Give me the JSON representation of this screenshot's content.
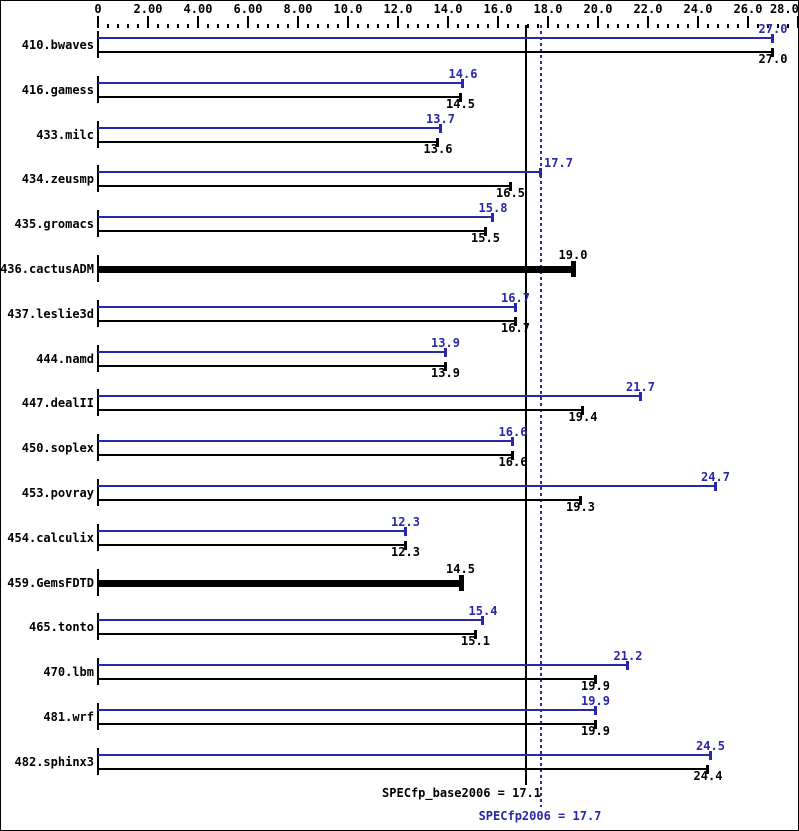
{
  "chart_data": {
    "type": "bar",
    "orientation": "horizontal",
    "title": "",
    "xlabel": "",
    "ylabel": "",
    "grid": false,
    "x_axis": {
      "min": 0,
      "max": 28,
      "major_tick_step": 2,
      "minor_tick_step": 0.4,
      "tick_labels": [
        "0",
        "2.00",
        "4.00",
        "6.00",
        "8.00",
        "10.0",
        "12.0",
        "14.0",
        "16.0",
        "18.0",
        "20.0",
        "22.0",
        "24.0",
        "26.0",
        "28.0"
      ]
    },
    "series": [
      {
        "id": "peak",
        "metric": "SPECfp2006",
        "color": "#2828aa"
      },
      {
        "id": "base",
        "metric": "SPECfp_base2006",
        "color": "#000000"
      }
    ],
    "benchmarks": [
      {
        "name": "410.bwaves",
        "style": "pair",
        "peak": 27.0,
        "peak_label": "27.0",
        "base": 27.0,
        "base_label": "27.0"
      },
      {
        "name": "416.gamess",
        "style": "pair",
        "peak": 14.6,
        "peak_label": "14.6",
        "base": 14.5,
        "base_label": "14.5"
      },
      {
        "name": "433.milc",
        "style": "pair",
        "peak": 13.7,
        "peak_label": "13.7",
        "base": 13.6,
        "base_label": "13.6"
      },
      {
        "name": "434.zeusmp",
        "style": "pair",
        "peak": 17.7,
        "peak_label": "17.7",
        "base": 16.5,
        "base_label": "16.5"
      },
      {
        "name": "435.gromacs",
        "style": "pair",
        "peak": 15.8,
        "peak_label": "15.8",
        "base": 15.5,
        "base_label": "15.5"
      },
      {
        "name": "436.cactusADM",
        "style": "single",
        "base": 19.0,
        "base_label": "19.0"
      },
      {
        "name": "437.leslie3d",
        "style": "pair",
        "peak": 16.7,
        "peak_label": "16.7",
        "base": 16.7,
        "base_label": "16.7"
      },
      {
        "name": "444.namd",
        "style": "pair",
        "peak": 13.9,
        "peak_label": "13.9",
        "base": 13.9,
        "base_label": "13.9"
      },
      {
        "name": "447.dealII",
        "style": "pair",
        "peak": 21.7,
        "peak_label": "21.7",
        "base": 19.4,
        "base_label": "19.4"
      },
      {
        "name": "450.soplex",
        "style": "pair",
        "peak": 16.6,
        "peak_label": "16.6",
        "base": 16.6,
        "base_label": "16.6"
      },
      {
        "name": "453.povray",
        "style": "pair",
        "peak": 24.7,
        "peak_label": "24.7",
        "base": 19.3,
        "base_label": "19.3"
      },
      {
        "name": "454.calculix",
        "style": "pair",
        "peak": 12.3,
        "peak_label": "12.3",
        "base": 12.3,
        "base_label": "12.3"
      },
      {
        "name": "459.GemsFDTD",
        "style": "single",
        "base": 14.5,
        "base_label": "14.5"
      },
      {
        "name": "465.tonto",
        "style": "pair",
        "peak": 15.4,
        "peak_label": "15.4",
        "base": 15.1,
        "base_label": "15.1"
      },
      {
        "name": "470.lbm",
        "style": "pair",
        "peak": 21.2,
        "peak_label": "21.2",
        "base": 19.9,
        "base_label": "19.9"
      },
      {
        "name": "481.wrf",
        "style": "pair",
        "peak": 19.9,
        "peak_label": "19.9",
        "base": 19.9,
        "base_label": "19.9"
      },
      {
        "name": "482.sphinx3",
        "style": "pair",
        "peak": 24.5,
        "peak_label": "24.5",
        "base": 24.4,
        "base_label": "24.4"
      }
    ],
    "reference_lines": [
      {
        "name": "SPECfp_base2006",
        "label": "SPECfp_base2006 = 17.1",
        "value": 17.1,
        "style": "solid",
        "color": "#000000"
      },
      {
        "name": "SPECfp2006",
        "label": "SPECfp2006 = 17.7",
        "value": 17.7,
        "style": "dotted",
        "color": "#2828aa"
      }
    ]
  }
}
